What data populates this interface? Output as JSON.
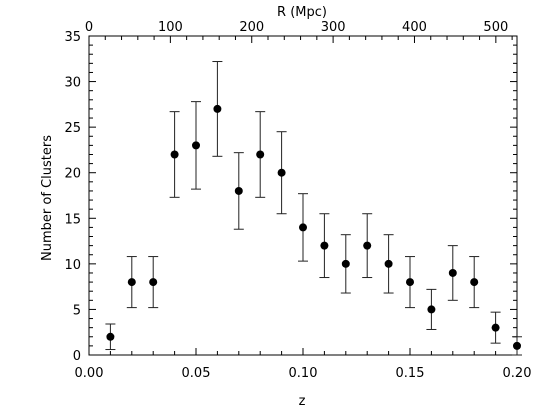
{
  "chart_data": {
    "type": "scatter",
    "xlabel": "z",
    "ylabel": "Number of Clusters",
    "top_xlabel": "R (Mpc)",
    "xlim": [
      0.0,
      0.2
    ],
    "ylim": [
      0,
      35
    ],
    "top_xlim": [
      0,
      526
    ],
    "x_ticks": [
      {
        "value": 0.0,
        "label": "0.00"
      },
      {
        "value": 0.05,
        "label": "0.05"
      },
      {
        "value": 0.1,
        "label": "0.10"
      },
      {
        "value": 0.15,
        "label": "0.15"
      },
      {
        "value": 0.2,
        "label": "0.20"
      }
    ],
    "y_ticks": [
      {
        "value": 0,
        "label": "0"
      },
      {
        "value": 5,
        "label": "5"
      },
      {
        "value": 10,
        "label": "10"
      },
      {
        "value": 15,
        "label": "15"
      },
      {
        "value": 20,
        "label": "20"
      },
      {
        "value": 25,
        "label": "25"
      },
      {
        "value": 30,
        "label": "30"
      },
      {
        "value": 35,
        "label": "35"
      }
    ],
    "top_x_ticks": [
      {
        "value": 0,
        "label": "0"
      },
      {
        "value": 100,
        "label": "100"
      },
      {
        "value": 200,
        "label": "200"
      },
      {
        "value": 300,
        "label": "300"
      },
      {
        "value": 400,
        "label": "400"
      },
      {
        "value": 500,
        "label": "500"
      }
    ],
    "points": [
      {
        "x": 0.01,
        "y": 2,
        "err": 1.4
      },
      {
        "x": 0.02,
        "y": 8,
        "err": 2.8
      },
      {
        "x": 0.03,
        "y": 8,
        "err": 2.8
      },
      {
        "x": 0.04,
        "y": 22,
        "err": 4.7
      },
      {
        "x": 0.05,
        "y": 23,
        "err": 4.8
      },
      {
        "x": 0.06,
        "y": 27,
        "err": 5.2
      },
      {
        "x": 0.07,
        "y": 18,
        "err": 4.2
      },
      {
        "x": 0.08,
        "y": 22,
        "err": 4.7
      },
      {
        "x": 0.09,
        "y": 20,
        "err": 4.5
      },
      {
        "x": 0.1,
        "y": 14,
        "err": 3.7
      },
      {
        "x": 0.11,
        "y": 12,
        "err": 3.5
      },
      {
        "x": 0.12,
        "y": 10,
        "err": 3.2
      },
      {
        "x": 0.13,
        "y": 12,
        "err": 3.5
      },
      {
        "x": 0.14,
        "y": 10,
        "err": 3.2
      },
      {
        "x": 0.15,
        "y": 8,
        "err": 2.8
      },
      {
        "x": 0.16,
        "y": 5,
        "err": 2.2
      },
      {
        "x": 0.17,
        "y": 9,
        "err": 3.0
      },
      {
        "x": 0.18,
        "y": 8,
        "err": 2.8
      },
      {
        "x": 0.19,
        "y": 3,
        "err": 1.7
      },
      {
        "x": 0.2,
        "y": 1,
        "err": 1.0
      }
    ],
    "grid": false,
    "legend": "none"
  }
}
